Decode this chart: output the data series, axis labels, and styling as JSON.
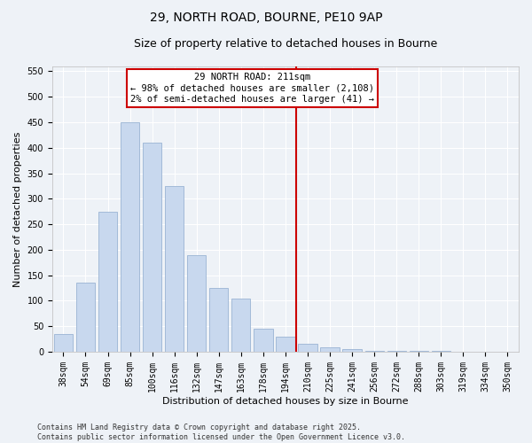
{
  "title1": "29, NORTH ROAD, BOURNE, PE10 9AP",
  "title2": "Size of property relative to detached houses in Bourne",
  "xlabel": "Distribution of detached houses by size in Bourne",
  "ylabel": "Number of detached properties",
  "bar_labels": [
    "38sqm",
    "54sqm",
    "69sqm",
    "85sqm",
    "100sqm",
    "116sqm",
    "132sqm",
    "147sqm",
    "163sqm",
    "178sqm",
    "194sqm",
    "210sqm",
    "225sqm",
    "241sqm",
    "256sqm",
    "272sqm",
    "288sqm",
    "303sqm",
    "319sqm",
    "334sqm",
    "350sqm"
  ],
  "bar_values": [
    35,
    135,
    275,
    450,
    410,
    325,
    190,
    125,
    105,
    45,
    30,
    15,
    8,
    5,
    2,
    1,
    1,
    1,
    0,
    0,
    0
  ],
  "bar_color": "#c8d8ee",
  "bar_edgecolor": "#9ab4d4",
  "vline_index": 10.5,
  "vline_color": "#cc0000",
  "ann_title": "29 NORTH ROAD: 211sqm",
  "ann_line2": "← 98% of detached houses are smaller (2,108)",
  "ann_line3": "2% of semi-detached houses are larger (41) →",
  "ann_box_color": "#cc0000",
  "ylim": [
    0,
    560
  ],
  "yticks": [
    0,
    50,
    100,
    150,
    200,
    250,
    300,
    350,
    400,
    450,
    500,
    550
  ],
  "bg_color": "#eef2f7",
  "grid_color": "#ffffff",
  "title_fontsize": 10,
  "subtitle_fontsize": 9,
  "tick_fontsize": 7,
  "ylabel_fontsize": 8,
  "xlabel_fontsize": 8,
  "ann_fontsize": 7.5,
  "footer_fontsize": 6,
  "footer": "Contains HM Land Registry data © Crown copyright and database right 2025.\nContains public sector information licensed under the Open Government Licence v3.0."
}
